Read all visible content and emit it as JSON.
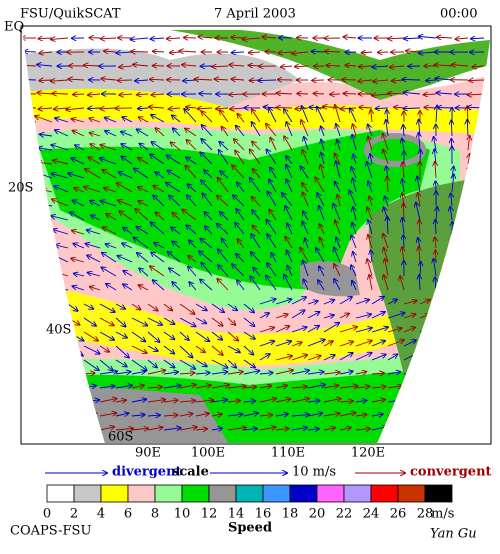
{
  "header": {
    "title": "FSU/QuikSCAT",
    "date": "7 April 2003",
    "time": "00:00"
  },
  "map": {
    "lat_labels": [
      "EQ",
      "20S",
      "40S",
      "60S"
    ],
    "lon_labels": [
      "90E",
      "100E",
      "110E",
      "120E"
    ]
  },
  "legend": {
    "divergent": "divergent",
    "scale": "scale",
    "scale_value": "10 m/s",
    "convergent": "convergent",
    "divergent_color": "#0000c8",
    "convergent_color": "#a00000"
  },
  "colorbar": {
    "labels": [
      0,
      2,
      4,
      6,
      8,
      10,
      12,
      14,
      16,
      18,
      20,
      22,
      24,
      26,
      28
    ],
    "unit": "m/s",
    "title": "Speed",
    "colors": [
      "#ffffff",
      "#c8c8c8",
      "#ffff00",
      "#ffc8c8",
      "#96fa96",
      "#00dc00",
      "#969696",
      "#00b4b4",
      "#3c96ff",
      "#0000c8",
      "#ff64ff",
      "#b496ff",
      "#ff0000",
      "#c83200",
      "#000000"
    ]
  },
  "footer": {
    "left": "COAPS-FSU",
    "right": "Yan Gu"
  }
}
